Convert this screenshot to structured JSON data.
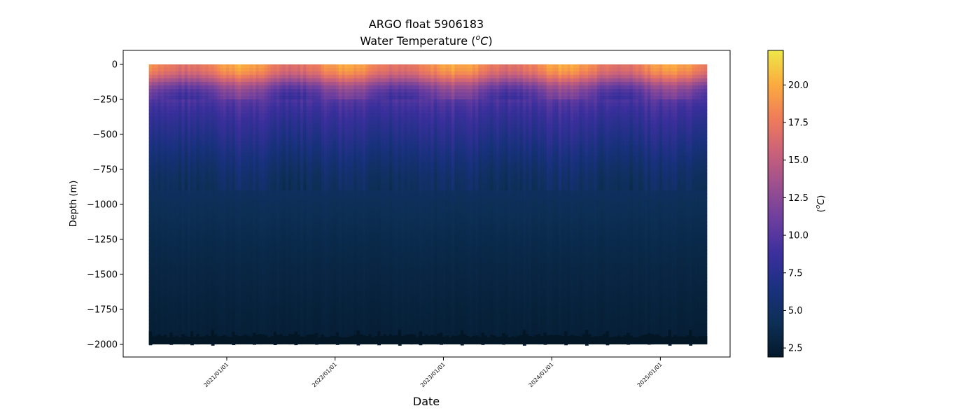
{
  "chart_data": {
    "type": "heatmap",
    "title": "ARGO float 5906183",
    "subtitle": {
      "prefix": "Water Temperature (",
      "superscript": "o",
      "unit_letter": "C",
      "suffix": ")"
    },
    "xlabel": "Date",
    "ylabel": "Depth (m)",
    "colorbar_label": {
      "prefix": "(",
      "superscript": "o",
      "unit_letter": "C",
      "suffix": ")"
    },
    "x_ticks": [
      "2021/01/01",
      "2022/01/01",
      "2023/01/01",
      "2024/01/01",
      "2025/01/01"
    ],
    "xlim": [
      "2020-01-18",
      "2025-08-24"
    ],
    "data_x_range": [
      "2020-04-14",
      "2025-06-03"
    ],
    "profile_interval_days": 10,
    "ylim": [
      -2090,
      100
    ],
    "y_ticks": [
      0,
      -250,
      -500,
      -750,
      -1000,
      -1250,
      -1500,
      -1750,
      -2000
    ],
    "y_tick_labels": [
      "0",
      "−250",
      "−500",
      "−750",
      "−1000",
      "−1250",
      "−1500",
      "−1750",
      "−2000"
    ],
    "colorbar_range": [
      1.9,
      22.3
    ],
    "colorbar_ticks": [
      2.5,
      5.0,
      7.5,
      10.0,
      12.5,
      15.0,
      17.5,
      20.0
    ],
    "colorbar_tick_labels": [
      "2.5",
      "5.0",
      "7.5",
      "10.0",
      "12.5",
      "15.0",
      "17.5",
      "20.0"
    ],
    "colormap": "thermal",
    "colormap_stops": [
      "#04192b",
      "#0c2f55",
      "#19317e",
      "#3a2f9c",
      "#6a3d9f",
      "#9a4f8f",
      "#c9617a",
      "#ee7c5a",
      "#fbab3f",
      "#ece748"
    ],
    "profile_depth_bottom_m": -1990,
    "profile_depth_top_m": 0,
    "temperature_profile": [
      {
        "depth": 0,
        "temp": 18.5
      },
      {
        "depth": -50,
        "temp": 17.8
      },
      {
        "depth": -100,
        "temp": 15.5
      },
      {
        "depth": -150,
        "temp": 12.5
      },
      {
        "depth": -200,
        "temp": 10.8
      },
      {
        "depth": -300,
        "temp": 9.2
      },
      {
        "depth": -400,
        "temp": 8.2
      },
      {
        "depth": -500,
        "temp": 7.4
      },
      {
        "depth": -600,
        "temp": 6.6
      },
      {
        "depth": -700,
        "temp": 5.8
      },
      {
        "depth": -800,
        "temp": 5.1
      },
      {
        "depth": -1000,
        "temp": 4.3
      },
      {
        "depth": -1250,
        "temp": 3.7
      },
      {
        "depth": -1500,
        "temp": 3.2
      },
      {
        "depth": -1750,
        "temp": 2.8
      },
      {
        "depth": -2000,
        "temp": 2.5
      }
    ],
    "grid": false,
    "legend": "none"
  }
}
